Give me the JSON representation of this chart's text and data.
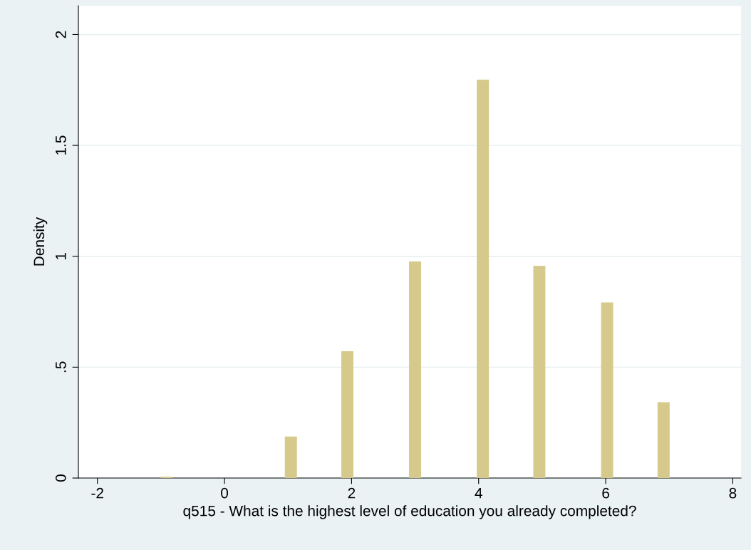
{
  "chart_data": {
    "type": "histogram",
    "xlabel": "q515 - What is the highest level of education you already completed?",
    "ylabel": "Density",
    "bins": [
      -1,
      -0.8222,
      -0.6444,
      -0.4667,
      -0.2889,
      -0.1111,
      0.0667,
      0.2444,
      0.4222,
      0.6,
      0.7778,
      0.9556,
      1.1333,
      1.3111,
      1.4889,
      1.6667,
      1.8444,
      2.0222,
      2.2,
      2.3778,
      2.5556,
      2.7333,
      2.9111,
      3.0889,
      3.2667,
      3.4444,
      3.6222,
      3.8,
      3.9778,
      4.1556,
      4.3333,
      4.5111,
      4.6889,
      4.8667,
      5.0444,
      5.2222,
      5.4,
      5.5778,
      5.7556,
      5.9333,
      6.1111,
      6.2889,
      6.4667,
      6.6444,
      6.8222,
      7
    ],
    "values": [
      0.005,
      0,
      0,
      0,
      0,
      0,
      0,
      0,
      0,
      0,
      0,
      0.185,
      0,
      0,
      0,
      0,
      0.57,
      0,
      0,
      0,
      0,
      0,
      0.975,
      0,
      0,
      0,
      0,
      0,
      1.795,
      0,
      0,
      0,
      0,
      0.955,
      0,
      0,
      0,
      0,
      0,
      0.79,
      0,
      0,
      0,
      0,
      0.34
    ],
    "color": "#d6c98c",
    "xlim": [
      -2.3,
      8.13
    ],
    "ylim": [
      0,
      2.13
    ],
    "xticks": [
      -2,
      0,
      2,
      4,
      6,
      8
    ],
    "yticks": [
      0,
      {
        "value": 0.5,
        "label": ".5"
      },
      1,
      {
        "value": 1.5,
        "label": "1.5"
      },
      2
    ],
    "grid": "y"
  }
}
